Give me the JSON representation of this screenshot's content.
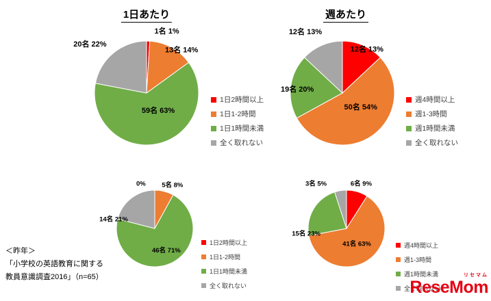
{
  "page": {
    "column_titles": [
      "1日あたり",
      "週あたり"
    ],
    "footnote": [
      "＜昨年＞",
      "「小学校の英語教育に関する",
      "教員意識調査2016」（n=65）"
    ],
    "logo": {
      "text": "ReseMom",
      "katakana": "リセマム",
      "color": "#e50012"
    }
  },
  "palette": {
    "red": "#ff0000",
    "orange": "#ed7d31",
    "green": "#70ad47",
    "gray": "#a6a6a6"
  },
  "chart_data": [
    {
      "id": "per-day-current",
      "type": "pie",
      "title": "1日あたり",
      "categories": [
        "1日2時間以上",
        "1日1-2時間",
        "1日1時間未満",
        "全く取れない"
      ],
      "counts": [
        1,
        13,
        59,
        20
      ],
      "percents": [
        1,
        14,
        63,
        22
      ],
      "labels": [
        "1名 1%",
        "13名 14%",
        "59名 63%",
        "20名 22%"
      ],
      "colors": [
        "#ff0000",
        "#ed7d31",
        "#70ad47",
        "#a6a6a6"
      ],
      "legend_position": "right",
      "label_layout": [
        {
          "angle": 18,
          "r": 1.26
        },
        {
          "angle": 39,
          "r": 1.07
        },
        {
          "angle": 146,
          "r": 0.4
        },
        {
          "angle": 311,
          "r": 1.44
        }
      ]
    },
    {
      "id": "per-week-current",
      "type": "pie",
      "title": "週あたり",
      "categories": [
        "週4時間以上",
        "週1-3時間",
        "週1時間未満",
        "全く取れない"
      ],
      "counts": [
        12,
        50,
        19,
        12
      ],
      "percents": [
        13,
        54,
        20,
        13
      ],
      "labels": [
        "12名 13%",
        "50名 54%",
        "19名 20%",
        "12名 13%"
      ],
      "colors": [
        "#ff0000",
        "#ed7d31",
        "#70ad47",
        "#a6a6a6"
      ],
      "legend_position": "right",
      "label_layout": [
        {
          "angle": 29,
          "r": 0.97
        },
        {
          "angle": 127,
          "r": 0.44
        },
        {
          "angle": 275,
          "r": 0.87
        },
        {
          "angle": 329,
          "r": 1.38
        }
      ]
    },
    {
      "id": "per-day-2016",
      "type": "pie",
      "title": "1日あたり（昨年）",
      "categories": [
        "1日2時間以上",
        "1日1-2時間",
        "1日1時間未満",
        "全く取れない"
      ],
      "counts": [
        0,
        5,
        46,
        14
      ],
      "percents": [
        0,
        8,
        71,
        21
      ],
      "labels": [
        "0%",
        "5名 8%",
        "46名 71%",
        "14名 21%"
      ],
      "colors": [
        "#ff0000",
        "#ed7d31",
        "#70ad47",
        "#a6a6a6"
      ],
      "legend_position": "right",
      "label_layout": [
        {
          "angle": 343,
          "r": 1.23
        },
        {
          "angle": 22,
          "r": 1.23
        },
        {
          "angle": 152,
          "r": 0.64
        },
        {
          "angle": 283,
          "r": 1.1
        }
      ]
    },
    {
      "id": "per-week-2016",
      "type": "pie",
      "title": "週あたり（昨年）",
      "categories": [
        "週4時間以上",
        "週1-3時間",
        "週1時間未満",
        "全く取れない"
      ],
      "counts": [
        6,
        41,
        15,
        3
      ],
      "percents": [
        9,
        63,
        23,
        5
      ],
      "labels": [
        "6名 9%",
        "41名 63%",
        "15名 23%",
        "3名 5%"
      ],
      "colors": [
        "#ff0000",
        "#ed7d31",
        "#70ad47",
        "#a6a6a6"
      ],
      "legend_position": "right",
      "label_layout": [
        {
          "angle": 18,
          "r": 1.24
        },
        {
          "angle": 146,
          "r": 0.48
        },
        {
          "angle": 263,
          "r": 1.06
        },
        {
          "angle": 326,
          "r": 1.42
        }
      ]
    }
  ]
}
